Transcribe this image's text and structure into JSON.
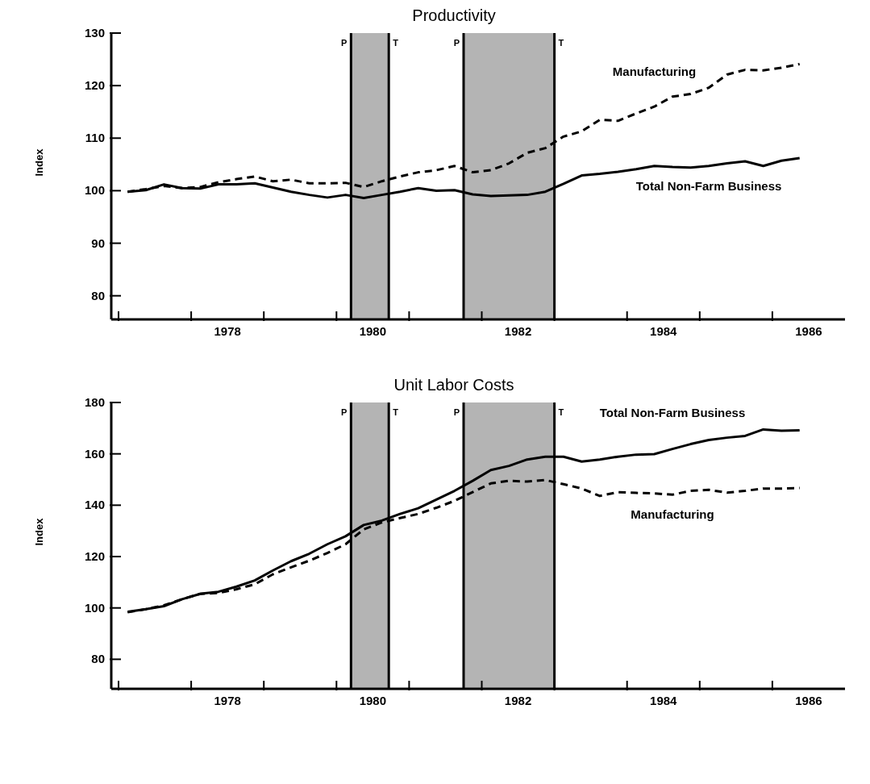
{
  "chart_data": [
    {
      "type": "line",
      "title": "Productivity",
      "ylabel": "Index",
      "xlim": [
        1976.9,
        1987
      ],
      "ylim": [
        75.5,
        130
      ],
      "yticks": [
        80,
        90,
        100,
        110,
        120,
        130
      ],
      "xticks": [
        {
          "value": 1977,
          "label": null
        },
        {
          "value": 1978,
          "label": null
        },
        {
          "value": 1978.5,
          "label": "1978"
        },
        {
          "value": 1979,
          "label": null
        },
        {
          "value": 1980,
          "label": null
        },
        {
          "value": 1980.5,
          "label": "1980"
        },
        {
          "value": 1981,
          "label": null
        },
        {
          "value": 1982,
          "label": null
        },
        {
          "value": 1982.5,
          "label": "1982"
        },
        {
          "value": 1983,
          "label": null
        },
        {
          "value": 1984,
          "label": null
        },
        {
          "value": 1984.5,
          "label": "1984"
        },
        {
          "value": 1985,
          "label": null
        },
        {
          "value": 1986,
          "label": null
        },
        {
          "value": 1986.5,
          "label": "1986"
        }
      ],
      "x": [
        1977.125,
        1977.375,
        1977.625,
        1977.875,
        1978.125,
        1978.375,
        1978.625,
        1978.875,
        1979.125,
        1979.375,
        1979.625,
        1979.875,
        1980.125,
        1980.375,
        1980.625,
        1980.875,
        1981.125,
        1981.375,
        1981.625,
        1981.875,
        1982.125,
        1982.375,
        1982.625,
        1982.875,
        1983.125,
        1983.375,
        1983.625,
        1983.875,
        1984.125,
        1984.375,
        1984.625,
        1984.875,
        1985.125,
        1985.375,
        1985.625,
        1985.875,
        1986.125,
        1986.375
      ],
      "series": [
        {
          "name": "Total Non-Farm Business",
          "color": "#000000",
          "line_style": "solid",
          "values": [
            99.8,
            100.1,
            101.2,
            100.5,
            100.4,
            101.2,
            101.2,
            101.4,
            100.6,
            99.8,
            99.2,
            98.7,
            99.2,
            98.6,
            99.2,
            99.8,
            100.5,
            100.0,
            100.1,
            99.3,
            99.0,
            99.1,
            99.2,
            99.8,
            101.3,
            102.9,
            103.2,
            103.6,
            104.1,
            104.7,
            104.5,
            104.4,
            104.7,
            105.2,
            105.6,
            104.7,
            105.7,
            106.2
          ]
        },
        {
          "name": "Manufacturing",
          "color": "#000000",
          "line_style": "dashed",
          "values": [
            99.8,
            100.3,
            100.9,
            100.5,
            100.7,
            101.6,
            102.2,
            102.7,
            101.8,
            102.1,
            101.4,
            101.4,
            101.5,
            100.7,
            101.8,
            102.7,
            103.5,
            103.9,
            104.7,
            103.5,
            103.9,
            105.2,
            107.2,
            108.1,
            110.3,
            111.3,
            113.5,
            113.3,
            114.7,
            116.0,
            117.9,
            118.4,
            119.6,
            122.1,
            123.0,
            122.9,
            123.4,
            124.1
          ]
        }
      ],
      "bands": [
        {
          "axis": "x",
          "from": 1980.2,
          "to": 1980.72,
          "color": "#b4b4b4"
        },
        {
          "axis": "x",
          "from": 1981.75,
          "to": 1983.0,
          "color": "#b4b4b4"
        }
      ],
      "ref_lines": [
        {
          "axis": "x",
          "value": 1980.2,
          "label": "P"
        },
        {
          "axis": "x",
          "value": 1980.72,
          "label": "T"
        },
        {
          "axis": "x",
          "value": 1981.75,
          "label": "P"
        },
        {
          "axis": "x",
          "value": 1983.0,
          "label": "T"
        }
      ],
      "legend": false
    },
    {
      "type": "line",
      "title": "Unit Labor Costs",
      "ylabel": "Index",
      "xlim": [
        1976.9,
        1987
      ],
      "ylim": [
        68.5,
        180
      ],
      "yticks": [
        80,
        100,
        120,
        140,
        160,
        180
      ],
      "xticks": [
        {
          "value": 1977,
          "label": null
        },
        {
          "value": 1978,
          "label": null
        },
        {
          "value": 1978.5,
          "label": "1978"
        },
        {
          "value": 1979,
          "label": null
        },
        {
          "value": 1980,
          "label": null
        },
        {
          "value": 1980.5,
          "label": "1980"
        },
        {
          "value": 1981,
          "label": null
        },
        {
          "value": 1982,
          "label": null
        },
        {
          "value": 1982.5,
          "label": "1982"
        },
        {
          "value": 1983,
          "label": null
        },
        {
          "value": 1984,
          "label": null
        },
        {
          "value": 1984.5,
          "label": "1984"
        },
        {
          "value": 1985,
          "label": null
        },
        {
          "value": 1986,
          "label": null
        },
        {
          "value": 1986.5,
          "label": "1986"
        }
      ],
      "x": [
        1977.125,
        1977.375,
        1977.625,
        1977.875,
        1978.125,
        1978.375,
        1978.625,
        1978.875,
        1979.125,
        1979.375,
        1979.625,
        1979.875,
        1980.125,
        1980.375,
        1980.625,
        1980.875,
        1981.125,
        1981.375,
        1981.625,
        1981.875,
        1982.125,
        1982.375,
        1982.625,
        1982.875,
        1983.125,
        1983.375,
        1983.625,
        1983.875,
        1984.125,
        1984.375,
        1984.625,
        1984.875,
        1985.125,
        1985.375,
        1985.625,
        1985.875,
        1986.125,
        1986.375
      ],
      "series": [
        {
          "name": "Total Non-Farm Business",
          "color": "#000000",
          "line_style": "solid",
          "values": [
            98.5,
            99.5,
            100.7,
            103.4,
            105.5,
            106.3,
            108.3,
            110.7,
            114.6,
            118.2,
            121.1,
            124.8,
            127.9,
            132.3,
            134.0,
            136.6,
            138.8,
            142.2,
            145.6,
            149.5,
            153.7,
            155.3,
            157.8,
            158.9,
            158.9,
            157.0,
            157.8,
            158.9,
            159.7,
            159.9,
            161.9,
            163.8,
            165.4,
            166.3,
            167.0,
            169.5,
            169.0,
            169.2
          ]
        },
        {
          "name": "Manufacturing",
          "color": "#000000",
          "line_style": "dashed",
          "values": [
            98.3,
            99.5,
            101.0,
            103.4,
            105.5,
            105.8,
            107.3,
            109.2,
            113.1,
            115.8,
            118.4,
            121.4,
            124.8,
            130.6,
            133.3,
            135.0,
            136.6,
            139.0,
            141.7,
            145.1,
            148.5,
            149.5,
            149.2,
            149.8,
            148.2,
            146.5,
            143.6,
            145.1,
            144.8,
            144.6,
            144.1,
            145.6,
            146.0,
            144.9,
            145.6,
            146.5,
            146.5,
            146.7
          ]
        }
      ],
      "bands": [
        {
          "axis": "x",
          "from": 1980.2,
          "to": 1980.72,
          "color": "#b4b4b4"
        },
        {
          "axis": "x",
          "from": 1981.75,
          "to": 1983.0,
          "color": "#b4b4b4"
        }
      ],
      "ref_lines": [
        {
          "axis": "x",
          "value": 1980.2,
          "label": "P"
        },
        {
          "axis": "x",
          "value": 1980.72,
          "label": "T"
        },
        {
          "axis": "x",
          "value": 1981.75,
          "label": "P"
        },
        {
          "axis": "x",
          "value": 1983.0,
          "label": "T"
        }
      ],
      "legend": false
    }
  ]
}
